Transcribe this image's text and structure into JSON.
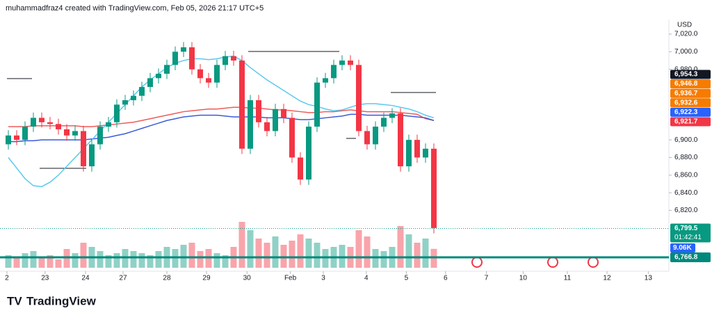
{
  "header": {
    "credit": "muhammadfraz4 created with TradingView.com, Feb 05, 2026 21:17 UTC+5",
    "currency": "USD"
  },
  "footer": {
    "logo": "TradingView"
  },
  "chart_data": {
    "type": "candlestick",
    "up_color": "#089981",
    "down_color": "#f23645",
    "open": [
      6895,
      6905,
      6900,
      6915,
      6925,
      6920,
      6918,
      6912,
      6905,
      6910,
      6870,
      6895,
      6915,
      6920,
      6940,
      6945,
      6950,
      6960,
      6970,
      6975,
      6985,
      7000,
      7005,
      6980,
      6970,
      6965,
      6985,
      6995,
      6990,
      6890,
      6945,
      6920,
      6910,
      6935,
      6925,
      6880,
      6855,
      6915,
      6965,
      6970,
      6985,
      6990,
      6985,
      6910,
      6895,
      6915,
      6925,
      6930,
      6870,
      6900,
      6880,
      6890
    ],
    "high": [
      6911,
      6911,
      6921,
      6931,
      6931,
      6926,
      6924,
      6918,
      6916,
      6916,
      6901,
      6921,
      6926,
      6946,
      6951,
      6956,
      6966,
      6976,
      6981,
      6991,
      7006,
      7011,
      7011,
      6986,
      6976,
      6991,
      7001,
      7001,
      6996,
      6951,
      6951,
      6926,
      6941,
      6941,
      6931,
      6886,
      6921,
      6971,
      6976,
      6991,
      6996,
      6996,
      6991,
      6916,
      6921,
      6931,
      6936,
      6936,
      6906,
      6906,
      6896,
      6896
    ],
    "low": [
      6889,
      6894,
      6894,
      6909,
      6914,
      6912,
      6906,
      6899,
      6899,
      6864,
      6864,
      6889,
      6909,
      6914,
      6934,
      6939,
      6944,
      6954,
      6964,
      6969,
      6979,
      6994,
      6974,
      6964,
      6959,
      6959,
      6979,
      6984,
      6884,
      6884,
      6914,
      6904,
      6904,
      6919,
      6874,
      6849,
      6849,
      6909,
      6959,
      6964,
      6979,
      6979,
      6904,
      6889,
      6889,
      6909,
      6919,
      6864,
      6864,
      6874,
      6874,
      6794
    ],
    "close": [
      6905,
      6900,
      6915,
      6925,
      6920,
      6918,
      6912,
      6905,
      6910,
      6870,
      6895,
      6915,
      6920,
      6940,
      6945,
      6950,
      6960,
      6970,
      6975,
      6985,
      7000,
      7005,
      6980,
      6970,
      6965,
      6985,
      6995,
      6990,
      6890,
      6945,
      6920,
      6910,
      6935,
      6925,
      6880,
      6855,
      6915,
      6965,
      6970,
      6985,
      6990,
      6985,
      6910,
      6895,
      6915,
      6925,
      6930,
      6870,
      6900,
      6880,
      6890,
      6800
    ],
    "volume": [
      6,
      5,
      7,
      8,
      5,
      6,
      4,
      9,
      7,
      12,
      10,
      8,
      6,
      7,
      9,
      8,
      7,
      6,
      8,
      10,
      9,
      11,
      12,
      8,
      9,
      7,
      6,
      10,
      22,
      18,
      14,
      12,
      15,
      11,
      13,
      16,
      14,
      12,
      9,
      10,
      11,
      10,
      18,
      15,
      9,
      8,
      10,
      20,
      16,
      12,
      14,
      9.06
    ],
    "lines": [
      {
        "color": "#f05a5a",
        "values": [
          6915,
          6915,
          6915,
          6916,
          6916,
          6916,
          6916,
          6916,
          6916,
          6915,
          6915,
          6916,
          6917,
          6918,
          6919,
          6920,
          6922,
          6924,
          6926,
          6928,
          6930,
          6932,
          6933,
          6934,
          6935,
          6935,
          6936,
          6937,
          6937,
          6936,
          6936,
          6935,
          6934,
          6934,
          6933,
          6932,
          6931,
          6931,
          6932,
          6932,
          6933,
          6934,
          6933,
          6932,
          6932,
          6932,
          6932,
          6931,
          6930,
          6929,
          6924,
          6922
        ]
      },
      {
        "color": "#3a5bd9",
        "values": [
          6898,
          6898,
          6899,
          6899,
          6900,
          6900,
          6900,
          6900,
          6900,
          6900,
          6901,
          6902,
          6903,
          6905,
          6907,
          6910,
          6913,
          6916,
          6919,
          6922,
          6924,
          6926,
          6927,
          6928,
          6928,
          6928,
          6927,
          6926,
          6926,
          6926,
          6926,
          6925,
          6925,
          6925,
          6924,
          6923,
          6923,
          6924,
          6925,
          6926,
          6927,
          6929,
          6929,
          6928,
          6928,
          6928,
          6928,
          6928,
          6927,
          6926,
          6925,
          6922
        ]
      },
      {
        "color": "#5bc8ef",
        "values": [
          6880,
          6868,
          6856,
          6848,
          6847,
          6852,
          6860,
          6870,
          6880,
          6890,
          6900,
          6910,
          6920,
          6930,
          6940,
          6950,
          6960,
          6968,
          6975,
          6982,
          6987,
          6990,
          6992,
          6992,
          6991,
          6992,
          6994,
          6995,
          6990,
          6982,
          6975,
          6968,
          6962,
          6956,
          6950,
          6944,
          6940,
          6938,
          6935,
          6933,
          6934,
          6937,
          6940,
          6941,
          6941,
          6940,
          6939,
          6937,
          6935,
          6932,
          6928,
          6925
        ]
      }
    ],
    "ylim": [
      6751,
      7035
    ],
    "yticks": [
      {
        "value": 7020,
        "label": "7,020.0"
      },
      {
        "value": 7000,
        "label": "7,000.0"
      },
      {
        "value": 6980,
        "label": "6,980.0"
      },
      {
        "value": 6900,
        "label": "6,900.0"
      },
      {
        "value": 6880,
        "label": "6,880.0"
      },
      {
        "value": 6860,
        "label": "6,860.0"
      },
      {
        "value": 6840,
        "label": "6,840.0"
      },
      {
        "value": 6820,
        "label": "6,820.0"
      }
    ],
    "xlim": [
      -1,
      79.17
    ],
    "xticks": [
      {
        "value": -0.17,
        "label": "2"
      },
      {
        "value": 4.4,
        "label": "23"
      },
      {
        "value": 9.25,
        "label": "24"
      },
      {
        "value": 13.75,
        "label": "27"
      },
      {
        "value": 19,
        "label": "28"
      },
      {
        "value": 23.75,
        "label": "29"
      },
      {
        "value": 28.6,
        "label": "30"
      },
      {
        "value": 33.8,
        "label": "Feb"
      },
      {
        "value": 37.75,
        "label": "3"
      },
      {
        "value": 42.9,
        "label": "4"
      },
      {
        "value": 47.7,
        "label": "5"
      },
      {
        "value": 52.4,
        "label": "6"
      },
      {
        "value": 57.3,
        "label": "7"
      },
      {
        "value": 61.7,
        "label": "10"
      },
      {
        "value": 67,
        "label": "11"
      },
      {
        "value": 71.75,
        "label": "12"
      },
      {
        "value": 76.7,
        "label": "13"
      }
    ],
    "price_labels": [
      {
        "value": 6954.3,
        "label": "6,954.3",
        "color": "#131722"
      },
      {
        "value": 6946.8,
        "label": "6,946.8",
        "color": "#f57c00"
      },
      {
        "value": 6936.7,
        "label": "6,936.7",
        "color": "#f57c00"
      },
      {
        "value": 6932.6,
        "label": "6,932.6",
        "color": "#f57c00"
      },
      {
        "value": 6922.3,
        "label": "6,922.3",
        "color": "#2962ff"
      },
      {
        "value": 6921.7,
        "label": "6,921.7",
        "color": "#f23645"
      }
    ],
    "last_price": {
      "value": 6799.5,
      "label": "6,799.5",
      "countdown": "01:42:41",
      "color": "#089981"
    },
    "volume_label": "9.06K",
    "level": {
      "value": 6766.8,
      "label": "6,766.8",
      "color": "#00897b"
    }
  }
}
